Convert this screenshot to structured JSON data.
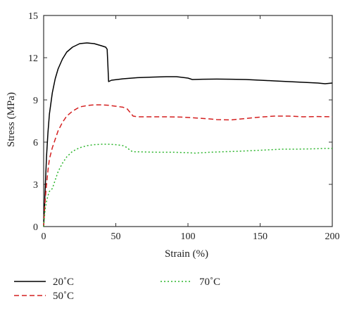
{
  "chart_data": {
    "type": "line",
    "xlabel": "Strain (%)",
    "ylabel": "Stress (MPa)",
    "xlim": [
      0,
      200
    ],
    "ylim": [
      0,
      15
    ],
    "x_ticks": [
      0,
      50,
      100,
      150,
      200
    ],
    "y_ticks": [
      0,
      3,
      6,
      9,
      12,
      15
    ],
    "grid": false,
    "legend_position": "bottom",
    "series": [
      {
        "name": "20˚C",
        "color": "#000000",
        "dash": "solid",
        "points": [
          [
            0,
            0
          ],
          [
            1,
            2.5
          ],
          [
            2,
            5
          ],
          [
            3,
            6.7
          ],
          [
            4,
            8
          ],
          [
            6,
            9.5
          ],
          [
            8,
            10.5
          ],
          [
            10,
            11.2
          ],
          [
            13,
            11.9
          ],
          [
            16,
            12.4
          ],
          [
            20,
            12.75
          ],
          [
            25,
            13.0
          ],
          [
            30,
            13.05
          ],
          [
            35,
            13.0
          ],
          [
            40,
            12.85
          ],
          [
            43,
            12.75
          ],
          [
            44,
            12.6
          ],
          [
            44.5,
            11.5
          ],
          [
            45,
            10.3
          ],
          [
            47,
            10.4
          ],
          [
            55,
            10.5
          ],
          [
            65,
            10.58
          ],
          [
            75,
            10.62
          ],
          [
            85,
            10.65
          ],
          [
            92,
            10.65
          ],
          [
            100,
            10.55
          ],
          [
            103,
            10.45
          ],
          [
            110,
            10.47
          ],
          [
            120,
            10.48
          ],
          [
            130,
            10.47
          ],
          [
            140,
            10.45
          ],
          [
            150,
            10.4
          ],
          [
            160,
            10.35
          ],
          [
            170,
            10.3
          ],
          [
            180,
            10.25
          ],
          [
            190,
            10.2
          ],
          [
            195,
            10.15
          ],
          [
            200,
            10.2
          ]
        ]
      },
      {
        "name": "50˚C",
        "color": "#d42020",
        "dash": "dashed",
        "points": [
          [
            0,
            0
          ],
          [
            1,
            1.8
          ],
          [
            2,
            3
          ],
          [
            3,
            4
          ],
          [
            4,
            4.8
          ],
          [
            6,
            5.6
          ],
          [
            8,
            6.2
          ],
          [
            10,
            6.8
          ],
          [
            13,
            7.4
          ],
          [
            16,
            7.85
          ],
          [
            20,
            8.2
          ],
          [
            25,
            8.5
          ],
          [
            30,
            8.6
          ],
          [
            35,
            8.65
          ],
          [
            40,
            8.65
          ],
          [
            45,
            8.62
          ],
          [
            50,
            8.55
          ],
          [
            55,
            8.48
          ],
          [
            58,
            8.35
          ],
          [
            60,
            8.1
          ],
          [
            62,
            7.85
          ],
          [
            65,
            7.8
          ],
          [
            75,
            7.8
          ],
          [
            85,
            7.8
          ],
          [
            95,
            7.78
          ],
          [
            105,
            7.72
          ],
          [
            115,
            7.65
          ],
          [
            120,
            7.6
          ],
          [
            130,
            7.58
          ],
          [
            140,
            7.68
          ],
          [
            150,
            7.78
          ],
          [
            160,
            7.85
          ],
          [
            170,
            7.85
          ],
          [
            180,
            7.8
          ],
          [
            190,
            7.82
          ],
          [
            200,
            7.8
          ]
        ]
      },
      {
        "name": "70˚C",
        "color": "#2cb52c",
        "dash": "dotted",
        "points": [
          [
            0,
            0
          ],
          [
            1,
            1.2
          ],
          [
            2,
            1.8
          ],
          [
            3,
            2.2
          ],
          [
            4,
            2.5
          ],
          [
            6,
            2.7
          ],
          [
            8,
            3.3
          ],
          [
            10,
            3.9
          ],
          [
            13,
            4.5
          ],
          [
            16,
            4.95
          ],
          [
            20,
            5.35
          ],
          [
            25,
            5.6
          ],
          [
            30,
            5.75
          ],
          [
            35,
            5.82
          ],
          [
            40,
            5.85
          ],
          [
            45,
            5.85
          ],
          [
            50,
            5.82
          ],
          [
            55,
            5.75
          ],
          [
            58,
            5.6
          ],
          [
            60,
            5.4
          ],
          [
            62,
            5.32
          ],
          [
            70,
            5.3
          ],
          [
            80,
            5.28
          ],
          [
            90,
            5.28
          ],
          [
            100,
            5.25
          ],
          [
            105,
            5.22
          ],
          [
            115,
            5.28
          ],
          [
            125,
            5.32
          ],
          [
            135,
            5.35
          ],
          [
            145,
            5.4
          ],
          [
            155,
            5.45
          ],
          [
            165,
            5.5
          ],
          [
            175,
            5.5
          ],
          [
            185,
            5.52
          ],
          [
            195,
            5.55
          ],
          [
            200,
            5.55
          ]
        ]
      }
    ]
  }
}
